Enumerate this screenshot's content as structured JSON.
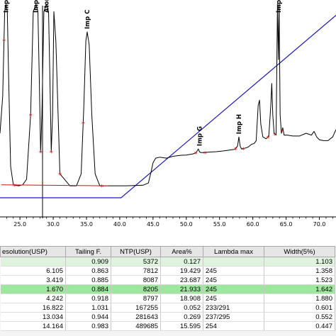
{
  "chart_data": {
    "type": "line",
    "title": "",
    "xlabel": "",
    "ylabel": "",
    "xlim": [
      22.0,
      72.5
    ],
    "x_ticks": [
      "25.0",
      "30.0",
      "35.0",
      "40.0",
      "45.0",
      "50.0",
      "55.0",
      "60.0",
      "65.0",
      "70.0"
    ],
    "series": [
      {
        "style": "chromatogram",
        "color": "#000000",
        "x": [
          22.0,
          22.4,
          22.7,
          22.9,
          23.1,
          23.3,
          23.6,
          24.0,
          24.8,
          25.4,
          26.0,
          26.6,
          27.0,
          27.4,
          27.7,
          27.9,
          28.1,
          28.3,
          28.6,
          29.0,
          29.3,
          29.5,
          29.7,
          29.9,
          30.1,
          30.4,
          31.0,
          32.5,
          33.5,
          34.2,
          34.6,
          34.9,
          35.1,
          35.4,
          35.8,
          36.3,
          37.0,
          38.5,
          41.0,
          43.5,
          44.3,
          44.7,
          45.0,
          45.4,
          46.0,
          47.0,
          48.0,
          49.0,
          50.0,
          51.0,
          51.5,
          51.8,
          52.0,
          52.2,
          52.6,
          53.5,
          54.5,
          55.5,
          56.5,
          57.3,
          57.7,
          57.9,
          58.1,
          58.3,
          58.7,
          59.3,
          59.8,
          60.2,
          60.5,
          60.8,
          61.0,
          61.2,
          61.5,
          62.0,
          62.4,
          62.7,
          62.85,
          63.0,
          63.2,
          63.5,
          63.7,
          63.85,
          63.95,
          64.1,
          64.3,
          64.5,
          64.7,
          64.9,
          65.2,
          66.0,
          67.0,
          68.0,
          68.8,
          69.2,
          69.6,
          70.0,
          70.6,
          71.3,
          72.0,
          72.5
        ],
        "y": [
          30,
          50,
          96,
          100,
          96,
          60,
          12,
          2,
          1.5,
          2,
          5,
          40,
          96,
          100,
          96,
          60,
          20,
          40,
          96,
          100,
          96,
          60,
          20,
          40,
          96,
          80,
          8,
          1.5,
          1.5,
          8,
          45,
          80,
          85,
          78,
          40,
          8,
          1.5,
          1.5,
          1.5,
          1.8,
          3,
          9,
          14,
          16.5,
          17,
          16.5,
          17.5,
          18,
          18.2,
          18.8,
          19.5,
          21.5,
          19.8,
          19.5,
          19.5,
          19.8,
          20,
          20.4,
          20.9,
          21.3,
          23,
          28,
          23,
          21.5,
          21.8,
          22.5,
          24,
          24.5,
          26,
          45,
          48,
          35,
          28,
          27,
          28.5,
          45,
          57,
          40,
          30,
          29,
          100,
          70,
          100,
          40,
          30,
          33,
          29,
          29,
          29,
          28.5,
          28.5,
          30,
          29,
          31,
          28,
          26.5,
          26,
          26,
          28,
          32
        ]
      },
      {
        "style": "gradient",
        "color": "#1818c8",
        "x": [
          22.0,
          40.2,
          72.5
        ],
        "y": [
          -5,
          -5,
          94
        ]
      }
    ],
    "peak_labels": [
      {
        "text": "Imp A",
        "x": 22.9
      },
      {
        "text": "Imp B",
        "x": 27.4
      },
      {
        "text": "Ator",
        "x": 29.0
      },
      {
        "text": "Imp C",
        "x": 35.1
      },
      {
        "text": "Imp G",
        "x": 52.0
      },
      {
        "text": "Imp H",
        "x": 57.9
      },
      {
        "text": "Imp D",
        "x": 63.85
      }
    ]
  },
  "results_table": {
    "headers": [
      "esolution(USP)",
      "Tailing F.",
      "NTP(USP)",
      "Area%",
      "Lambda max",
      "Width(5%)"
    ],
    "rows": [
      [
        "",
        "0.909",
        "5372",
        "0.127",
        "",
        "1.103"
      ],
      [
        "6.105",
        "0.863",
        "7812",
        "19.429",
        "245",
        "1.358"
      ],
      [
        "3.419",
        "0.885",
        "8087",
        "23.687",
        "245",
        "1.523"
      ],
      [
        "1.670",
        "0.884",
        "8205",
        "21.933",
        "245",
        "1.642"
      ],
      [
        "4.242",
        "0.918",
        "8797",
        "18.908",
        "245",
        "1.880"
      ],
      [
        "16.822",
        "1.031",
        "167255",
        "0.052",
        "233/291",
        "0.601"
      ],
      [
        "13.034",
        "0.944",
        "281643",
        "0.269",
        "237/295",
        "0.552"
      ],
      [
        "14.164",
        "0.983",
        "489685",
        "15.595",
        "254",
        "0.447"
      ]
    ]
  }
}
